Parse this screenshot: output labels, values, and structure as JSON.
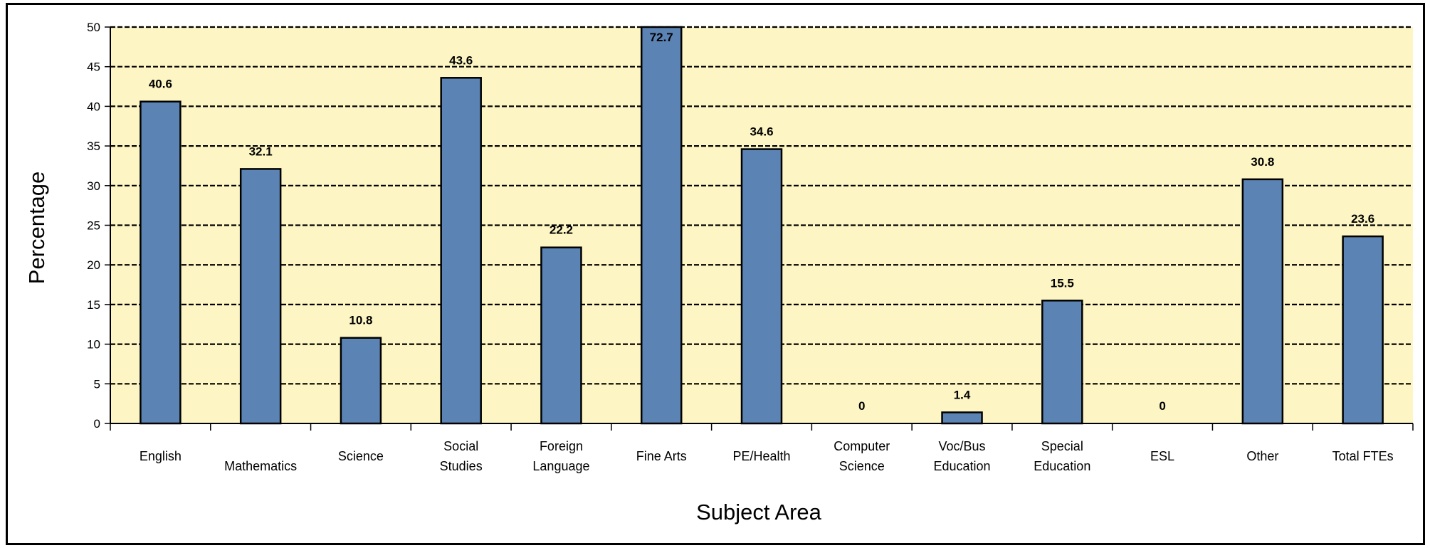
{
  "chart_data": {
    "type": "bar",
    "title": "",
    "xlabel": "Subject Area",
    "ylabel": "Percentage",
    "ylim": [
      0,
      50
    ],
    "yticks": [
      0,
      5,
      10,
      15,
      20,
      25,
      30,
      35,
      40,
      45,
      50
    ],
    "grid": true,
    "legend": "none",
    "categories": [
      "English",
      "Mathematics",
      "Science",
      "Social Studies",
      "Foreign Language",
      "Fine Arts",
      "PE/Health",
      "Computer Science",
      "Voc/Bus Education",
      "Special Education",
      "ESL",
      "Other",
      "Total FTEs"
    ],
    "category_label_lines": [
      [
        "English"
      ],
      [
        "Mathematics"
      ],
      [
        "Science"
      ],
      [
        "Social",
        "Studies"
      ],
      [
        "Foreign",
        "Language"
      ],
      [
        "Fine Arts"
      ],
      [
        "PE/Health"
      ],
      [
        "Computer",
        "Science"
      ],
      [
        "Voc/Bus",
        "Education"
      ],
      [
        "Special",
        "Education"
      ],
      [
        "ESL"
      ],
      [
        "Other"
      ],
      [
        "Total FTEs"
      ]
    ],
    "values": [
      40.6,
      32.1,
      10.8,
      43.6,
      22.2,
      72.7,
      34.6,
      0,
      1.4,
      15.5,
      0,
      30.8,
      23.6
    ],
    "data_labels": [
      "40.6",
      "32.1",
      "10.8",
      "43.6",
      "22.2",
      "72.7",
      "34.6",
      "0",
      "1.4",
      "15.5",
      "0",
      "30.8",
      "23.6"
    ],
    "colors": {
      "bar": "#5b83b4",
      "bar_border": "#000000",
      "plot_background": "#fdf6c4",
      "gridline": "#000000"
    }
  }
}
